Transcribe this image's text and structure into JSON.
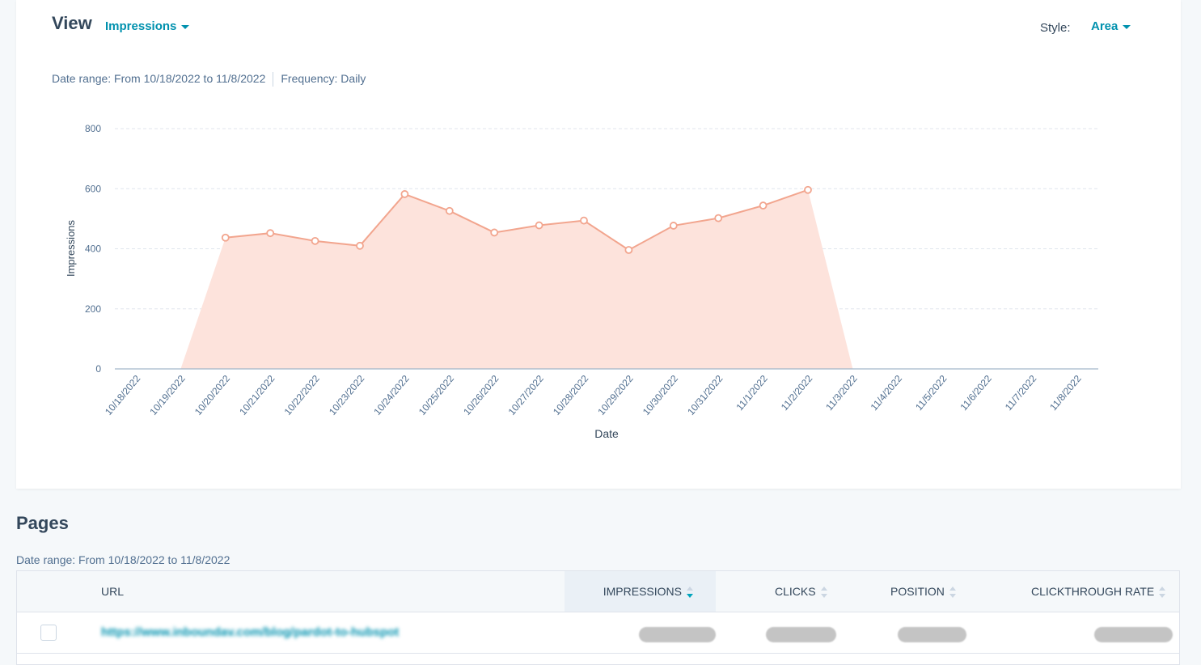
{
  "header": {
    "title": "View",
    "metric_selected": "Impressions",
    "style_label": "Style:",
    "style_selected": "Area",
    "date_range": "Date range: From 10/18/2022 to 11/8/2022",
    "frequency": "Frequency: Daily"
  },
  "chart_data": {
    "type": "area",
    "xlabel": "Date",
    "ylabel": "Impressions",
    "ylim": [
      0,
      800
    ],
    "y_ticks": [
      0,
      200,
      400,
      600,
      800
    ],
    "categories": [
      "10/18/2022",
      "10/19/2022",
      "10/20/2022",
      "10/21/2022",
      "10/22/2022",
      "10/23/2022",
      "10/24/2022",
      "10/25/2022",
      "10/26/2022",
      "10/27/2022",
      "10/28/2022",
      "10/29/2022",
      "10/30/2022",
      "10/31/2022",
      "11/1/2022",
      "11/2/2022",
      "11/3/2022",
      "11/4/2022",
      "11/5/2022",
      "11/6/2022",
      "11/7/2022",
      "11/8/2022"
    ],
    "series": [
      {
        "values": [
          0,
          0,
          437,
          452,
          426,
          410,
          582,
          526,
          454,
          478,
          494,
          396,
          477,
          502,
          544,
          596,
          0,
          0,
          0,
          0,
          0,
          0
        ],
        "line_color": "#f2a58e",
        "fill_color": "#fde3dc"
      }
    ],
    "grid": true
  },
  "pages": {
    "title": "Pages",
    "date_range": "Date range: From 10/18/2022 to 11/8/2022",
    "columns": {
      "url": "URL",
      "impressions": "IMPRESSIONS",
      "clicks": "CLICKS",
      "position": "POSITION",
      "ctr": "CLICKTHROUGH RATE"
    },
    "rows": [
      {
        "url": "https://www.inboundav.com/blog/pardot-to-hubspot"
      }
    ]
  }
}
